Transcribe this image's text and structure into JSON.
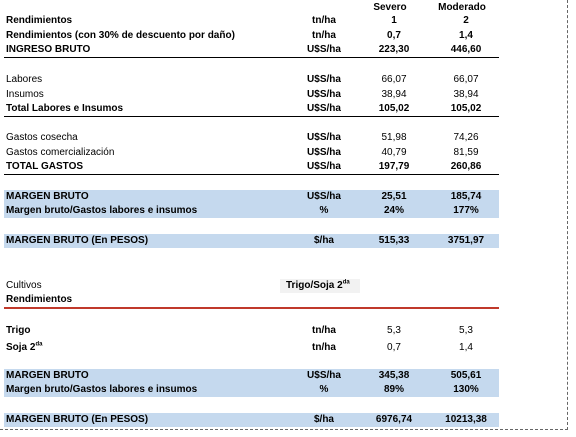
{
  "header": {
    "col1": "Severo",
    "col2": "Moderado"
  },
  "rows": [
    {
      "label": "Rendimientos",
      "unit": "tn/ha",
      "v1": "1",
      "v2": "2"
    },
    {
      "label": "Rendimientos (con 30% de descuento por daño)",
      "unit": "tn/ha",
      "v1": "0,7",
      "v2": "1,4"
    },
    {
      "label": "INGRESO BRUTO",
      "unit": "U$S/ha",
      "v1": "223,30",
      "v2": "446,60"
    },
    {
      "label": "Labores",
      "unit": "U$S/ha",
      "v1": "66,07",
      "v2": "66,07"
    },
    {
      "label": "Insumos",
      "unit": "U$S/ha",
      "v1": "38,94",
      "v2": "38,94"
    },
    {
      "label": "Total Labores e Insumos",
      "unit": "U$S/ha",
      "v1": "105,02",
      "v2": "105,02"
    },
    {
      "label": "Gastos cosecha",
      "unit": "U$S/ha",
      "v1": "51,98",
      "v2": "74,26"
    },
    {
      "label": "Gastos comercialización",
      "unit": "U$S/ha",
      "v1": "40,79",
      "v2": "81,59"
    },
    {
      "label": "TOTAL GASTOS",
      "unit": "U$S/ha",
      "v1": "197,79",
      "v2": "260,86"
    },
    {
      "label": "MARGEN BRUTO",
      "unit": "U$S/ha",
      "v1": "25,51",
      "v2": "185,74"
    },
    {
      "label": "Margen bruto/Gastos labores e insumos",
      "unit": "%",
      "v1": "24%",
      "v2": "177%"
    },
    {
      "label": "MARGEN BRUTO (En PESOS)",
      "unit": "$/ha",
      "v1": "515,33",
      "v2": "3751,97"
    }
  ],
  "section2": {
    "crops_label": "Cultivos",
    "crop_value": "Trigo/Soja 2",
    "crop_sup": "da",
    "rend_label": "Rendimientos",
    "rows": [
      {
        "label": "Trigo",
        "unit": "tn/ha",
        "v1": "5,3",
        "v2": "5,3"
      },
      {
        "label": "Soja 2",
        "sup": "da",
        "unit": "tn/ha",
        "v1": "0,7",
        "v2": "1,4"
      },
      {
        "label": "MARGEN BRUTO",
        "unit": "U$S/ha",
        "v1": "345,38",
        "v2": "505,61"
      },
      {
        "label": "Margen bruto/Gastos labores e insumos",
        "unit": "%",
        "v1": "89%",
        "v2": "130%"
      },
      {
        "label": "MARGEN BRUTO (En PESOS)",
        "unit": "$/ha",
        "v1": "6976,74",
        "v2": "10213,38"
      }
    ]
  }
}
